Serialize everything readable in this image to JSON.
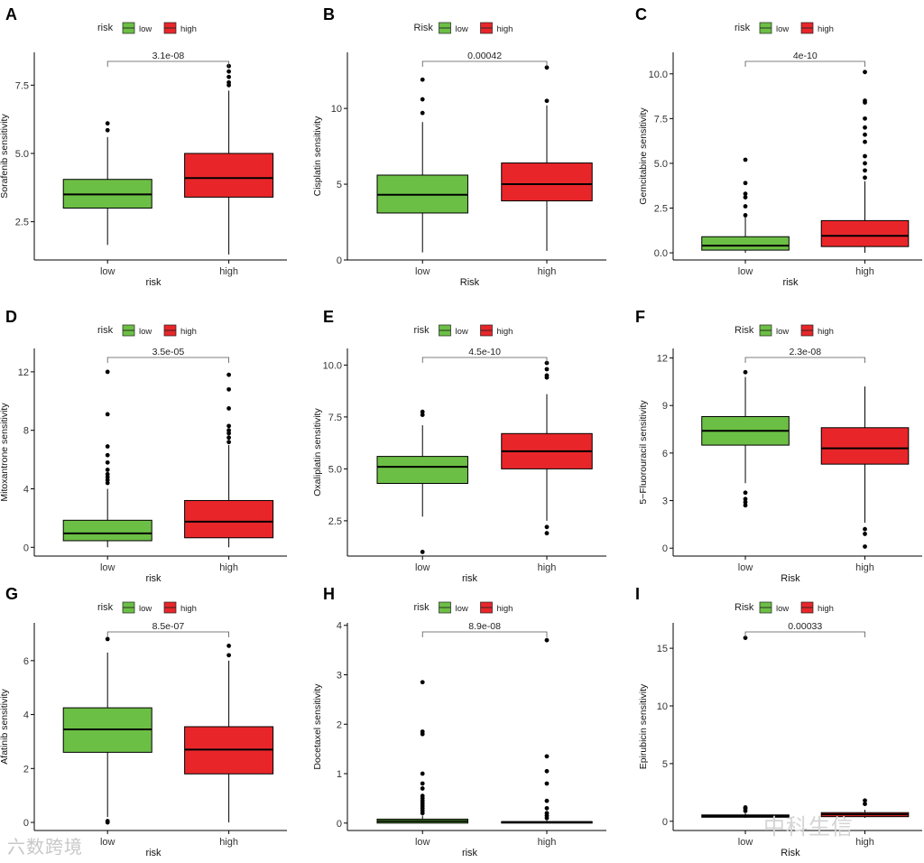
{
  "colors": {
    "low": "#6cbf45",
    "high": "#e8262a"
  },
  "watermarks": {
    "left": "六数跨境",
    "right": "中科生信"
  },
  "chart_data": [
    {
      "panel": "A",
      "type": "boxplot",
      "legend_title": "risk",
      "legend_labels": [
        "low",
        "high"
      ],
      "categories": [
        "low",
        "high"
      ],
      "xlabel": "risk",
      "ylabel": "Sorafenib sensitivity",
      "ylim": [
        1.1,
        8.7
      ],
      "yticks": [
        2.5,
        5.0,
        7.5
      ],
      "ytick_labels": [
        "2.5",
        "5.0",
        "7.5"
      ],
      "pvalue": "3.1e-08",
      "boxes": [
        {
          "group": "low",
          "whisker_low": 1.65,
          "q1": 3.0,
          "median": 3.5,
          "q3": 4.05,
          "whisker_high": 5.6,
          "outliers": [
            5.85,
            6.1
          ]
        },
        {
          "group": "high",
          "whisker_low": 1.3,
          "q1": 3.4,
          "median": 4.1,
          "q3": 5.0,
          "whisker_high": 7.3,
          "outliers": [
            7.5,
            7.6,
            7.8,
            8.0,
            8.2
          ]
        }
      ]
    },
    {
      "panel": "B",
      "type": "boxplot",
      "legend_title": "Risk",
      "legend_labels": [
        "low",
        "high"
      ],
      "categories": [
        "low",
        "high"
      ],
      "xlabel": "Risk",
      "ylabel": "Cisplatin sensitivity",
      "ylim": [
        0,
        13.7
      ],
      "yticks": [
        0,
        5,
        10
      ],
      "ytick_labels": [
        "0",
        "5",
        "10"
      ],
      "pvalue": "0.00042",
      "boxes": [
        {
          "group": "low",
          "whisker_low": 0.5,
          "q1": 3.1,
          "median": 4.3,
          "q3": 5.6,
          "whisker_high": 9.1,
          "outliers": [
            9.7,
            10.6,
            11.9
          ]
        },
        {
          "group": "high",
          "whisker_low": 0.6,
          "q1": 3.9,
          "median": 5.0,
          "q3": 6.4,
          "whisker_high": 10.2,
          "outliers": [
            10.5,
            12.7
          ]
        }
      ]
    },
    {
      "panel": "C",
      "type": "boxplot",
      "legend_title": "risk",
      "legend_labels": [
        "low",
        "high"
      ],
      "categories": [
        "low",
        "high"
      ],
      "xlabel": "risk",
      "ylabel": "Gemcitabine sensitivity",
      "ylim": [
        -0.4,
        11.2
      ],
      "yticks": [
        0,
        2.5,
        5.0,
        7.5,
        10.0
      ],
      "ytick_labels": [
        "0.0",
        "2.5",
        "5.0",
        "7.5",
        "10.0"
      ],
      "pvalue": "4e-10",
      "boxes": [
        {
          "group": "low",
          "whisker_low": 0.0,
          "q1": 0.15,
          "median": 0.4,
          "q3": 0.9,
          "whisker_high": 2.0,
          "outliers": [
            2.1,
            2.6,
            3.1,
            3.3,
            3.9,
            5.2
          ]
        },
        {
          "group": "high",
          "whisker_low": 0.0,
          "q1": 0.35,
          "median": 0.95,
          "q3": 1.8,
          "whisker_high": 4.0,
          "outliers": [
            4.2,
            4.6,
            5.0,
            5.4,
            6.2,
            6.6,
            7.0,
            7.5,
            8.4,
            8.5,
            10.1
          ]
        }
      ]
    },
    {
      "panel": "D",
      "type": "boxplot",
      "legend_title": "risk",
      "legend_labels": [
        "low",
        "high"
      ],
      "categories": [
        "low",
        "high"
      ],
      "xlabel": "risk",
      "ylabel": "Mitoxantrone sensitivity",
      "ylim": [
        -0.6,
        13.6
      ],
      "yticks": [
        0,
        4,
        8,
        12
      ],
      "ytick_labels": [
        "0",
        "4",
        "8",
        "12"
      ],
      "pvalue": "3.5e-05",
      "boxes": [
        {
          "group": "low",
          "whisker_low": 0.0,
          "q1": 0.45,
          "median": 0.95,
          "q3": 1.85,
          "whisker_high": 4.0,
          "outliers": [
            4.4,
            4.6,
            4.8,
            5.0,
            5.3,
            5.8,
            6.3,
            6.9,
            9.1,
            12.0
          ]
        },
        {
          "group": "high",
          "whisker_low": 0.0,
          "q1": 0.65,
          "median": 1.75,
          "q3": 3.2,
          "whisker_high": 7.0,
          "outliers": [
            7.2,
            7.5,
            7.8,
            8.0,
            8.3,
            9.5,
            10.8,
            11.8
          ]
        }
      ]
    },
    {
      "panel": "E",
      "type": "boxplot",
      "legend_title": "risk",
      "legend_labels": [
        "low",
        "high"
      ],
      "categories": [
        "low",
        "high"
      ],
      "xlabel": "risk",
      "ylabel": "Oxaliplatin sensitivity",
      "ylim": [
        0.8,
        10.8
      ],
      "yticks": [
        2.5,
        5.0,
        7.5,
        10.0
      ],
      "ytick_labels": [
        "2.5",
        "5.0",
        "7.5",
        "10.0"
      ],
      "pvalue": "4.5e-10",
      "boxes": [
        {
          "group": "low",
          "whisker_low": 2.7,
          "q1": 4.3,
          "median": 5.1,
          "q3": 5.6,
          "whisker_high": 7.1,
          "outliers": [
            1.0,
            7.6,
            7.75
          ]
        },
        {
          "group": "high",
          "whisker_low": 2.5,
          "q1": 5.0,
          "median": 5.85,
          "q3": 6.7,
          "whisker_high": 8.6,
          "outliers": [
            1.9,
            2.2,
            9.4,
            9.5,
            9.8,
            10.1
          ]
        }
      ]
    },
    {
      "panel": "F",
      "type": "boxplot",
      "legend_title": "Risk",
      "legend_labels": [
        "low",
        "high"
      ],
      "categories": [
        "low",
        "high"
      ],
      "xlabel": "Risk",
      "ylabel": "5−Fluorouracil sensitivity",
      "ylim": [
        -0.5,
        12.6
      ],
      "yticks": [
        0,
        3,
        6,
        9,
        12
      ],
      "ytick_labels": [
        "0",
        "3",
        "6",
        "9",
        "12"
      ],
      "pvalue": "2.3e-08",
      "boxes": [
        {
          "group": "low",
          "whisker_low": 4.1,
          "q1": 6.5,
          "median": 7.4,
          "q3": 8.3,
          "whisker_high": 10.8,
          "outliers": [
            2.7,
            2.9,
            3.1,
            3.5,
            11.1
          ]
        },
        {
          "group": "high",
          "whisker_low": 1.6,
          "q1": 5.3,
          "median": 6.3,
          "q3": 7.6,
          "whisker_high": 10.2,
          "outliers": [
            0.1,
            0.9,
            1.2
          ]
        }
      ]
    },
    {
      "panel": "G",
      "type": "boxplot",
      "legend_title": "risk",
      "legend_labels": [
        "low",
        "high"
      ],
      "categories": [
        "low",
        "high"
      ],
      "xlabel": "risk",
      "ylabel": "Afatinib sensitivity",
      "ylim": [
        -0.3,
        7.4
      ],
      "yticks": [
        0,
        2,
        4,
        6
      ],
      "ytick_labels": [
        "0",
        "2",
        "4",
        "6"
      ],
      "pvalue": "8.5e-07",
      "boxes": [
        {
          "group": "low",
          "whisker_low": 0.2,
          "q1": 2.6,
          "median": 3.45,
          "q3": 4.25,
          "whisker_high": 6.3,
          "outliers": [
            0.0,
            0.05,
            6.8
          ]
        },
        {
          "group": "high",
          "whisker_low": 0.0,
          "q1": 1.8,
          "median": 2.7,
          "q3": 3.55,
          "whisker_high": 6.0,
          "outliers": [
            6.2,
            6.55
          ]
        }
      ]
    },
    {
      "panel": "H",
      "type": "boxplot",
      "legend_title": "risk",
      "legend_labels": [
        "low",
        "high"
      ],
      "categories": [
        "low",
        "high"
      ],
      "xlabel": "risk",
      "ylabel": "Docetaxel sensitivity",
      "ylim": [
        -0.15,
        4.05
      ],
      "yticks": [
        0,
        1,
        2,
        3,
        4
      ],
      "ytick_labels": [
        "0",
        "1",
        "2",
        "3",
        "4"
      ],
      "pvalue": "8.9e-08",
      "boxes": [
        {
          "group": "low",
          "whisker_low": 0.0,
          "q1": 0.0,
          "median": 0.04,
          "q3": 0.08,
          "whisker_high": 0.15,
          "outliers": [
            0.2,
            0.25,
            0.3,
            0.35,
            0.4,
            0.45,
            0.5,
            0.55,
            0.7,
            0.8,
            1.0,
            1.8,
            1.85,
            2.85
          ]
        },
        {
          "group": "high",
          "whisker_low": 0.0,
          "q1": 0.0,
          "median": 0.02,
          "q3": 0.03,
          "whisker_high": 0.05,
          "outliers": [
            0.1,
            0.15,
            0.2,
            0.3,
            0.45,
            0.8,
            1.05,
            1.35,
            3.7
          ]
        }
      ]
    },
    {
      "panel": "I",
      "type": "boxplot",
      "legend_title": "Risk",
      "legend_labels": [
        "low",
        "high"
      ],
      "categories": [
        "low",
        "high"
      ],
      "xlabel": "Risk",
      "ylabel": "Epirubicin sensitivity",
      "ylim": [
        -0.8,
        17.2
      ],
      "yticks": [
        0,
        5,
        10,
        15
      ],
      "ytick_labels": [
        "0",
        "5",
        "10",
        "15"
      ],
      "pvalue": "0.00033",
      "boxes": [
        {
          "group": "low",
          "whisker_low": 0.3,
          "q1": 0.35,
          "median": 0.45,
          "q3": 0.55,
          "whisker_high": 0.7,
          "outliers": [
            0.9,
            1.1,
            1.2,
            15.9
          ]
        },
        {
          "group": "high",
          "whisker_low": 0.3,
          "q1": 0.4,
          "median": 0.6,
          "q3": 0.75,
          "whisker_high": 1.0,
          "outliers": [
            1.5,
            1.8
          ]
        }
      ]
    }
  ]
}
